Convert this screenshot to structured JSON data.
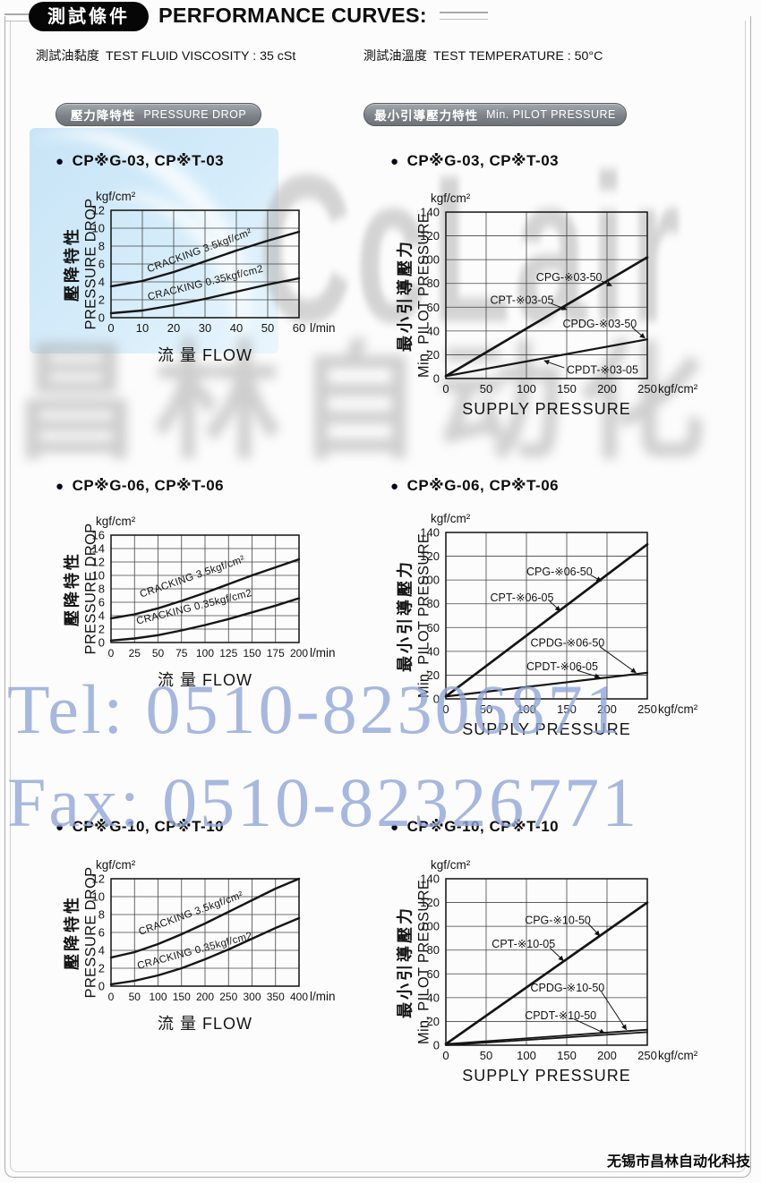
{
  "page": {
    "header": {
      "badge": "測試條件",
      "title": "PERFORMANCE CURVES:"
    },
    "conditions": [
      {
        "cn": "測試油黏度",
        "en": "TEST FLUID VISCOSITY : 35 cSt"
      },
      {
        "cn": "測試油溫度",
        "en": "TEST TEMPERATURE : 50°C"
      }
    ],
    "section_badges": [
      {
        "cn": "壓力降特性",
        "en": "PRESSURE DROP"
      },
      {
        "cn": "最小引導壓力特性",
        "en": "Min. PILOT PRESSURE"
      }
    ],
    "watermarks": {
      "logo_latin": "CcLair",
      "logo_cn": "昌林自动化",
      "tel": "Tel: 0510-82306871",
      "fax": "Fax: 0510-82326771",
      "blue_text_color": "#8fa6d9",
      "gray_logo_color": "#b3b3b3",
      "blue_block_color": "#cfe8f8"
    },
    "footer": "无锡市昌林自动化科技"
  },
  "chart_data": [
    {
      "id": "pd-03",
      "type": "line",
      "group": "pressure-drop",
      "title": "CP※G-03, CP※T-03",
      "unit": "kgf/cm²",
      "ylabel_cn": "壓降特性",
      "ylabel_en": "PRESSURE DROP",
      "xlabel": "流 量 FLOW",
      "x_unit": "l/min",
      "xlim": [
        0,
        60
      ],
      "ylim": [
        0,
        12
      ],
      "xticks": [
        0,
        10,
        20,
        30,
        40,
        50,
        60
      ],
      "yticks": [
        0,
        2,
        4,
        6,
        8,
        10,
        12
      ],
      "series": [
        {
          "name": "CRACKING 3.5kgf/cm²",
          "x": [
            0,
            10,
            20,
            30,
            40,
            50,
            60
          ],
          "y": [
            3.5,
            4.1,
            5.1,
            6.3,
            7.5,
            8.6,
            9.6
          ],
          "label_at": [
            12,
            5.05
          ],
          "label_angle": -20
        },
        {
          "name": "CRACKING 0.35kgf/cm2",
          "x": [
            0,
            10,
            20,
            30,
            40,
            50,
            60
          ],
          "y": [
            0.5,
            0.8,
            1.4,
            2.1,
            2.9,
            3.7,
            4.4
          ],
          "label_at": [
            12,
            1.95
          ],
          "label_angle": -14
        }
      ]
    },
    {
      "id": "pp-03",
      "type": "line",
      "group": "pilot-pressure",
      "title": "CP※G-03, CP※T-03",
      "unit": "kgf/cm²",
      "ylabel_cn": "最小引導壓力",
      "ylabel_en": "Min. PILOT PRESSURE",
      "xlabel": "SUPPLY PRESSURE",
      "x_unit": "kgf/cm²",
      "xlim": [
        0,
        250
      ],
      "ylim": [
        0,
        140
      ],
      "xticks": [
        0,
        50,
        100,
        150,
        200,
        250
      ],
      "yticks": [
        0,
        20,
        40,
        60,
        80,
        100,
        120,
        140
      ],
      "series": [
        {
          "name": "CPG-※03-50 / CPT-※03-05",
          "x": [
            0,
            250
          ],
          "y": [
            2,
            102
          ]
        },
        {
          "name": "CPDG-※03-50 / CPDT-※03-05",
          "x": [
            0,
            250
          ],
          "y": [
            2,
            33
          ]
        }
      ],
      "labels": [
        {
          "text": "CPG-※03-50",
          "tx": 112,
          "ty": 85,
          "sx": 193,
          "sy": 82,
          "ax": 206,
          "ay": 78
        },
        {
          "text": "CPT-※03-05",
          "tx": 55,
          "ty": 66,
          "sx": 131,
          "sy": 63,
          "ax": 150,
          "ay": 58
        },
        {
          "text": "CPDG-※03-50",
          "tx": 145,
          "ty": 46,
          "sx": 231,
          "sy": 43,
          "ax": 247,
          "ay": 34
        },
        {
          "text": "CPDT-※03-05",
          "tx": 150,
          "ty": 7,
          "sx": 147,
          "sy": 9,
          "ax": 122,
          "ay": 15
        }
      ]
    },
    {
      "id": "pd-06",
      "type": "line",
      "group": "pressure-drop",
      "title": "CP※G-06, CP※T-06",
      "unit": "kgf/cm²",
      "ylabel_cn": "壓降特性",
      "ylabel_en": "PRESSURE DROP",
      "xlabel": "流 量 FLOW",
      "x_unit": "l/min",
      "xlim": [
        0,
        200
      ],
      "ylim": [
        0,
        16
      ],
      "xticks": [
        0,
        25,
        50,
        75,
        100,
        125,
        150,
        175,
        200
      ],
      "yticks": [
        0,
        2,
        4,
        6,
        8,
        10,
        12,
        14,
        16
      ],
      "series": [
        {
          "name": "CRACKING 3.5kgf/cm²",
          "x": [
            0,
            25,
            50,
            75,
            100,
            125,
            150,
            175,
            200
          ],
          "y": [
            3.6,
            4.2,
            5.1,
            6.2,
            7.4,
            8.7,
            10.0,
            11.2,
            12.4
          ],
          "label_at": [
            32,
            6.7
          ],
          "label_angle": -19
        },
        {
          "name": "CRACKING 0.35kgf/cm2",
          "x": [
            0,
            25,
            50,
            75,
            100,
            125,
            150,
            175,
            200
          ],
          "y": [
            0.3,
            0.6,
            1.1,
            1.8,
            2.6,
            3.5,
            4.5,
            5.5,
            6.6
          ],
          "label_at": [
            28,
            2.7
          ],
          "label_angle": -14
        }
      ]
    },
    {
      "id": "pp-06",
      "type": "line",
      "group": "pilot-pressure",
      "title": "CP※G-06, CP※T-06",
      "unit": "kgf/cm²",
      "ylabel_cn": "最小引導壓力",
      "ylabel_en": "Min. PILOT PRESSURE",
      "xlabel": "SUPPLY PRESSURE",
      "x_unit": "kgf/cm²",
      "xlim": [
        0,
        250
      ],
      "ylim": [
        0,
        140
      ],
      "xticks": [
        0,
        50,
        100,
        150,
        200,
        250
      ],
      "yticks": [
        0,
        20,
        40,
        60,
        80,
        100,
        120,
        140
      ],
      "series": [
        {
          "name": "CPG-※06-50 / CPT-※06-05",
          "x": [
            0,
            250
          ],
          "y": [
            2,
            130
          ]
        },
        {
          "name": "CPDG-※06-50 / CPDT-※06-05",
          "x": [
            0,
            250
          ],
          "y": [
            2,
            22
          ]
        }
      ],
      "labels": [
        {
          "text": "CPG-※06-50",
          "tx": 100,
          "ty": 107,
          "sx": 180,
          "sy": 104,
          "ax": 193,
          "ay": 99
        },
        {
          "text": "CPT-※06-05",
          "tx": 55,
          "ty": 85,
          "sx": 129,
          "sy": 82,
          "ax": 142,
          "ay": 74
        },
        {
          "text": "CPDG-※06-50",
          "tx": 105,
          "ty": 47,
          "sx": 191,
          "sy": 44,
          "ax": 236,
          "ay": 22
        },
        {
          "text": "CPDT-※06-05",
          "tx": 100,
          "ty": 27,
          "sx": 163,
          "sy": 24,
          "ax": 191,
          "ay": 18
        }
      ]
    },
    {
      "id": "pd-10",
      "type": "line",
      "group": "pressure-drop",
      "title": "CP※G-10, CP※T-10",
      "unit": "kgf/cm²",
      "ylabel_cn": "壓降特性",
      "ylabel_en": "PRESSURE DROP",
      "xlabel": "流 量 FLOW",
      "x_unit": "l/min",
      "xlim": [
        0,
        400
      ],
      "ylim": [
        0,
        12
      ],
      "xticks": [
        0,
        50,
        100,
        150,
        200,
        250,
        300,
        350,
        400
      ],
      "yticks": [
        0,
        2,
        4,
        6,
        8,
        10,
        12
      ],
      "series": [
        {
          "name": "CRACKING 3.5kgf/cm²",
          "x": [
            0,
            50,
            100,
            150,
            200,
            250,
            300,
            350,
            400
          ],
          "y": [
            3.2,
            3.8,
            4.7,
            5.8,
            7.0,
            8.3,
            9.6,
            10.9,
            12.0
          ],
          "label_at": [
            62,
            5.7
          ],
          "label_angle": -20
        },
        {
          "name": "CRACKING 0.35kgf/cm2",
          "x": [
            0,
            50,
            100,
            150,
            200,
            250,
            300,
            350,
            400
          ],
          "y": [
            0.2,
            0.6,
            1.2,
            2.0,
            3.0,
            4.1,
            5.3,
            6.5,
            7.6
          ],
          "label_at": [
            58,
            1.9
          ],
          "label_angle": -15
        }
      ]
    },
    {
      "id": "pp-10",
      "type": "line",
      "group": "pilot-pressure",
      "title": "CP※G-10, CP※T-10",
      "unit": "kgf/cm²",
      "ylabel_cn": "最小引導壓力",
      "ylabel_en": "Min. PILOT PRESSURE",
      "xlabel": "SUPPLY PRESSURE",
      "x_unit": "kgf/cm²",
      "xlim": [
        0,
        250
      ],
      "ylim": [
        0,
        140
      ],
      "xticks": [
        0,
        50,
        100,
        150,
        200,
        250
      ],
      "yticks": [
        0,
        20,
        40,
        60,
        80,
        100,
        120,
        140
      ],
      "series": [
        {
          "name": "CPG-※10-50 / CPT-※10-05",
          "x": [
            0,
            250
          ],
          "y": [
            1,
            120
          ]
        },
        {
          "name": "CPDG-※10-50",
          "x": [
            0,
            250
          ],
          "y": [
            1,
            13
          ]
        },
        {
          "name": "CPDT-※10-50",
          "x": [
            0,
            250
          ],
          "y": [
            0,
            11
          ]
        }
      ],
      "labels": [
        {
          "text": "CPG-※10-50",
          "tx": 98,
          "ty": 105,
          "sx": 177,
          "sy": 102,
          "ax": 191,
          "ay": 92
        },
        {
          "text": "CPT-※10-05",
          "tx": 57,
          "ty": 85,
          "sx": 129,
          "sy": 82,
          "ax": 146,
          "ay": 71
        },
        {
          "text": "CPDG-※10-50",
          "tx": 105,
          "ty": 48,
          "sx": 193,
          "sy": 45,
          "ax": 224,
          "ay": 13
        },
        {
          "text": "CPDT-※10-50",
          "tx": 98,
          "ty": 25,
          "sx": 159,
          "sy": 22,
          "ax": 197,
          "ay": 10
        }
      ]
    }
  ]
}
